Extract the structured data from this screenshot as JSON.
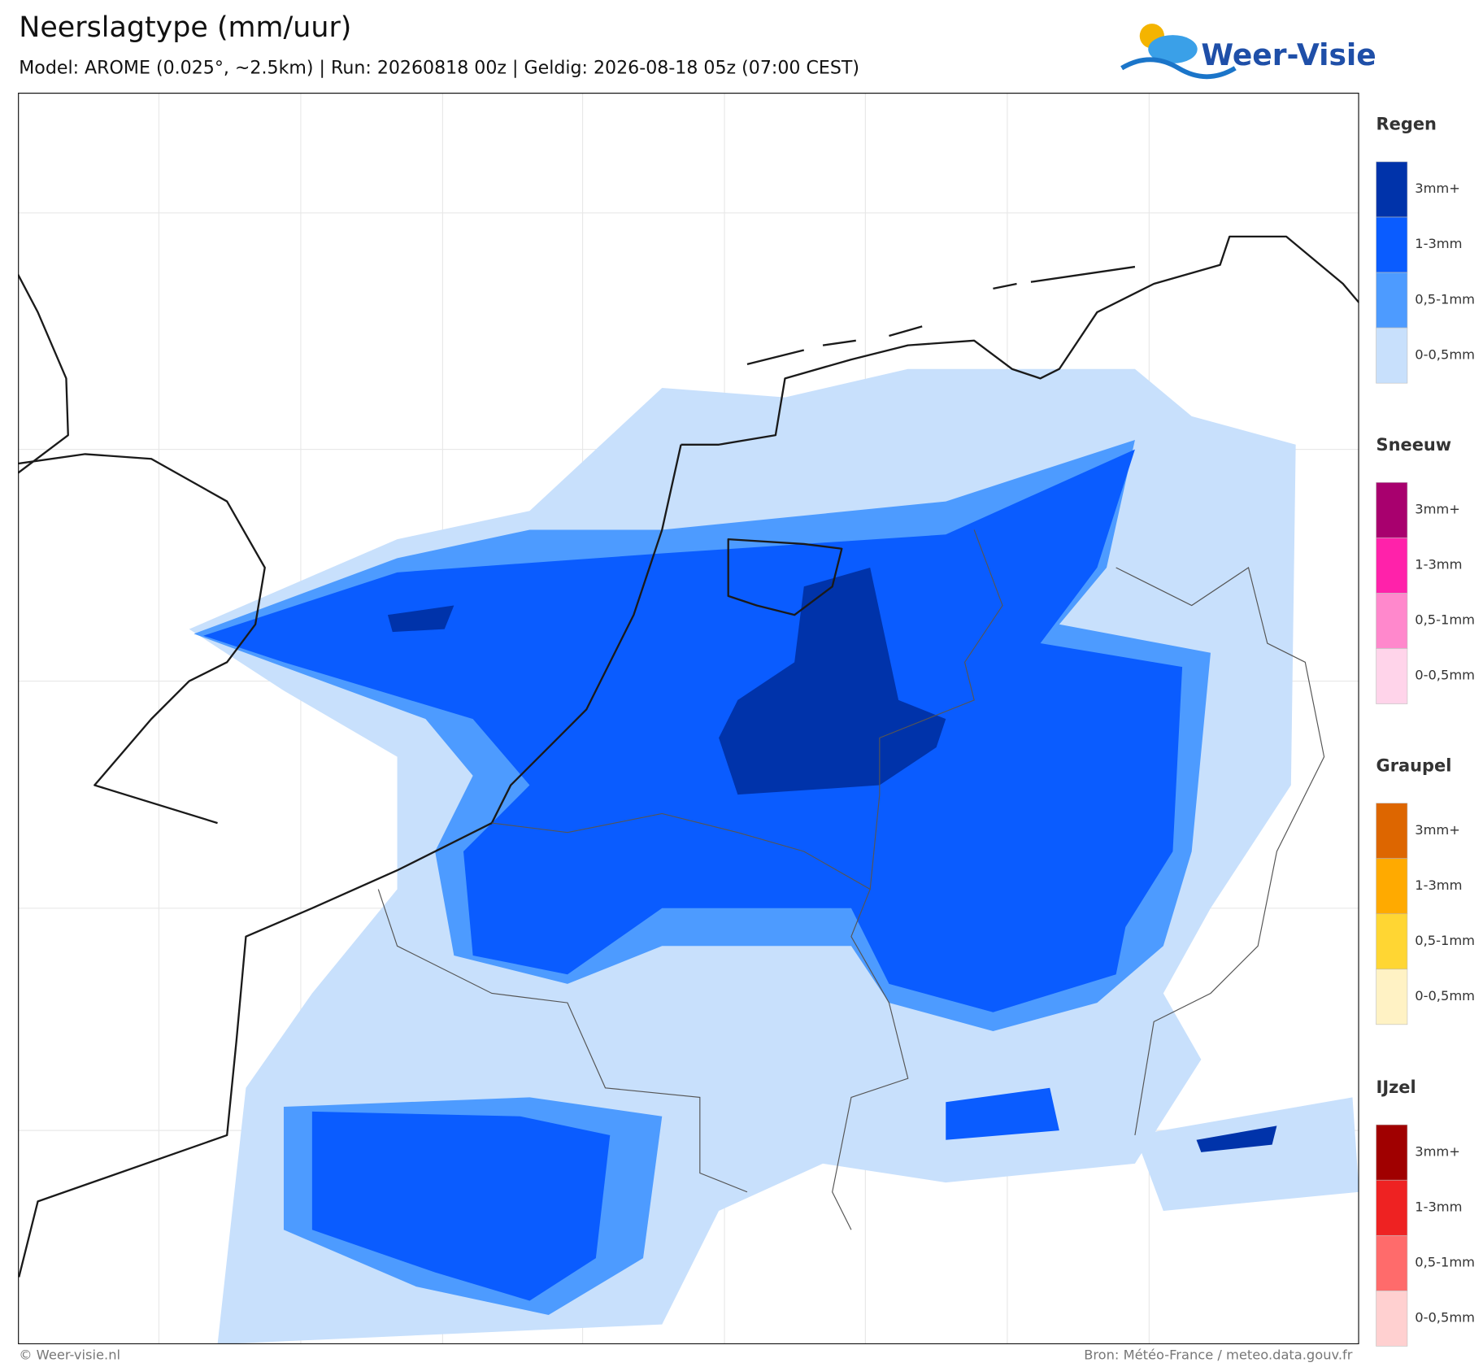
{
  "header": {
    "title": "Neerslagtype (mm/uur)",
    "subtitle": "Model: AROME (0.025°, ~2.5km)  |  Run: 20260818 00z  |  Geldig: 2026-08-18 05z (07:00 CEST)"
  },
  "logo": {
    "text": "Weer-Visie"
  },
  "legend": {
    "groups": [
      {
        "title": "Regen",
        "labels": [
          "3mm+",
          "1-3mm",
          "0,5-1mm",
          "0-0,5mm"
        ],
        "colors": [
          "#0033aa",
          "#0a5cff",
          "#4d9bff",
          "#c8e0fc"
        ]
      },
      {
        "title": "Sneeuw",
        "labels": [
          "3mm+",
          "1-3mm",
          "0,5-1mm",
          "0-0,5mm"
        ],
        "colors": [
          "#a8006e",
          "#ff22aa",
          "#ff88cc",
          "#ffd4ea"
        ]
      },
      {
        "title": "Graupel",
        "labels": [
          "3mm+",
          "1-3mm",
          "0,5-1mm",
          "0-0,5mm"
        ],
        "colors": [
          "#dd6600",
          "#ffaa00",
          "#ffd633",
          "#fff2c4"
        ]
      },
      {
        "title": "IJzel",
        "labels": [
          "3mm+",
          "1-3mm",
          "0,5-1mm",
          "0-0,5mm"
        ],
        "colors": [
          "#a00000",
          "#ee2222",
          "#ff6b6b",
          "#ffd0d0"
        ]
      }
    ]
  },
  "footer": {
    "left": "© Weer-visie.nl",
    "right": "Bron: Météo-France / meteo.data.gouv.fr"
  }
}
